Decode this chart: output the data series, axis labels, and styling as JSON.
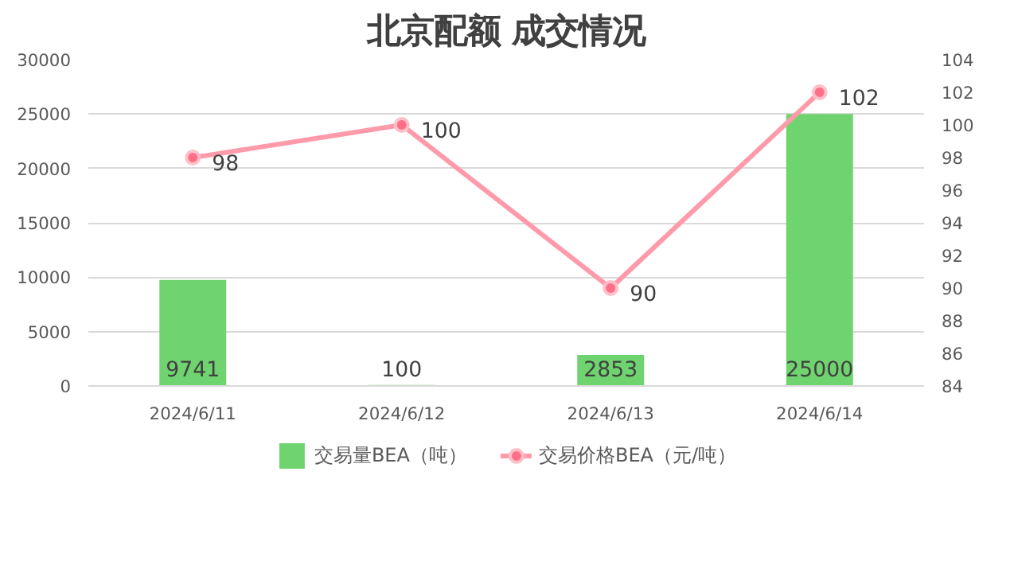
{
  "chart_data": {
    "type": "bar",
    "title": "北京配额 成交情况",
    "categories": [
      "2024/6/11",
      "2024/6/12",
      "2024/6/13",
      "2024/6/14"
    ],
    "series": [
      {
        "name": "交易量BEA（吨）",
        "type": "bar",
        "color": "#6fd46f",
        "values": [
          9741,
          100,
          2853,
          25000
        ]
      },
      {
        "name": "交易价格BEA（元/吨）",
        "type": "line",
        "axis": "y2",
        "color": "#ff9aaa",
        "values": [
          98,
          100,
          90,
          102
        ]
      }
    ],
    "ylim": [
      0,
      30000
    ],
    "yticks": [
      0,
      5000,
      10000,
      15000,
      20000,
      25000,
      30000
    ],
    "y2lim": [
      84,
      104
    ],
    "y2ticks": [
      84,
      86,
      88,
      90,
      92,
      94,
      96,
      98,
      100,
      102,
      104
    ],
    "data_labels": true,
    "grid": "y",
    "legend": "bottom",
    "marker": "circle"
  }
}
